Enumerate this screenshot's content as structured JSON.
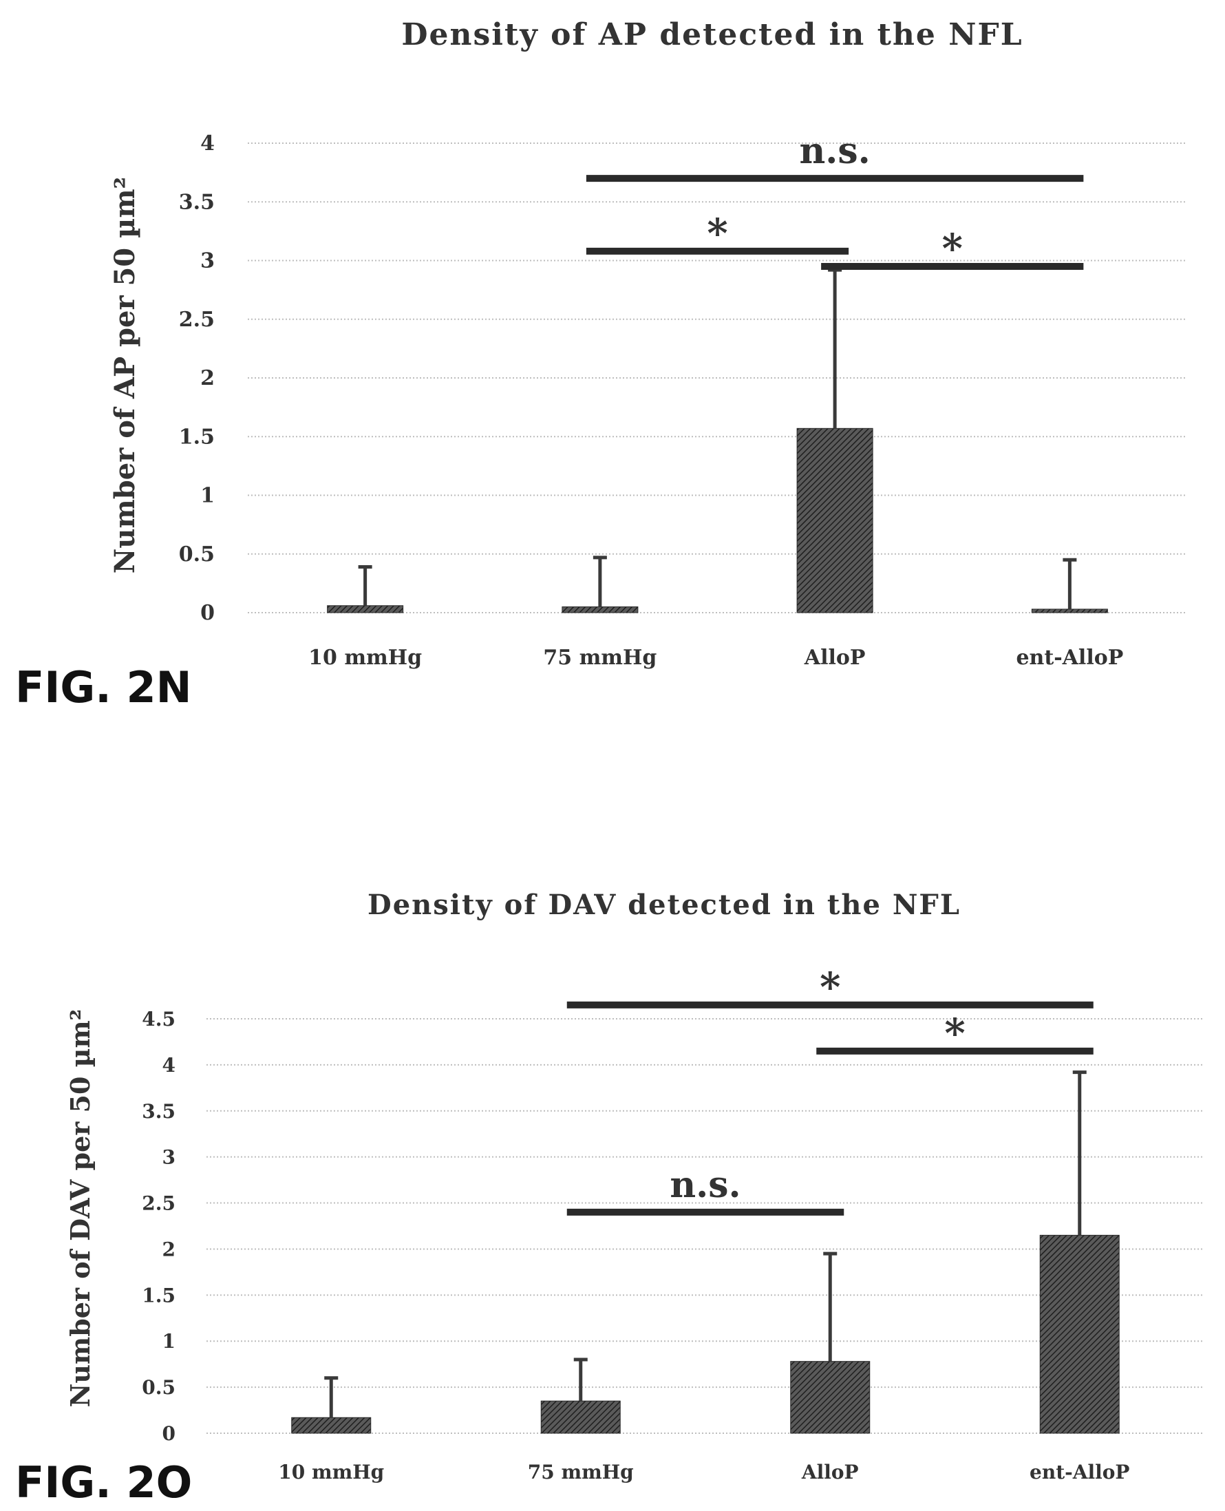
{
  "colors": {
    "bar_fill": "#3a3a3a",
    "grid": "#bdbdbd",
    "text": "#333333",
    "bracket": "#2a2a2a"
  },
  "chart_data": [
    {
      "type": "bar",
      "figure_label": "FIG. 2N",
      "title": "Density of AP detected in the NFL",
      "ylabel": "Number of AP per 50 µm²",
      "xlabel": "",
      "categories": [
        "10 mmHg",
        "75 mmHg",
        "AlloP",
        "ent-AlloP"
      ],
      "values": [
        0.06,
        0.05,
        1.57,
        0.03
      ],
      "error_upper": [
        0.39,
        0.47,
        2.92,
        0.45
      ],
      "ylim": [
        0,
        4
      ],
      "yticks": [
        "0",
        "0.5",
        "1",
        "1.5",
        "2",
        "2.5",
        "3",
        "3.5",
        "4"
      ],
      "grid": true,
      "legend": "none",
      "annotations": [
        {
          "label": "n.s.",
          "from": "75 mmHg",
          "to": "ent-AlloP",
          "y": 3.7
        },
        {
          "label": "*",
          "from": "75 mmHg",
          "to": "AlloP",
          "y": 3.08
        },
        {
          "label": "*",
          "from": "AlloP",
          "to": "ent-AlloP",
          "y": 2.95
        }
      ]
    },
    {
      "type": "bar",
      "figure_label": "FIG. 2O",
      "title": "Density of DAV detected in the NFL",
      "ylabel": "Number of DAV per 50 µm²",
      "xlabel": "",
      "categories": [
        "10 mmHg",
        "75 mmHg",
        "AlloP",
        "ent-AlloP"
      ],
      "values": [
        0.17,
        0.35,
        0.78,
        2.15
      ],
      "error_upper": [
        0.6,
        0.8,
        1.95,
        3.92
      ],
      "ylim": [
        0,
        4.5
      ],
      "yticks": [
        "0",
        "0.5",
        "1",
        "1.5",
        "2",
        "2.5",
        "3",
        "3.5",
        "4",
        "4.5"
      ],
      "grid": true,
      "legend": "none",
      "annotations": [
        {
          "label": "*",
          "from": "75 mmHg",
          "to": "ent-AlloP",
          "y": 4.65
        },
        {
          "label": "*",
          "from": "AlloP",
          "to": "ent-AlloP",
          "y": 4.15
        },
        {
          "label": "n.s.",
          "from": "75 mmHg",
          "to": "AlloP",
          "y": 2.4
        }
      ]
    }
  ]
}
